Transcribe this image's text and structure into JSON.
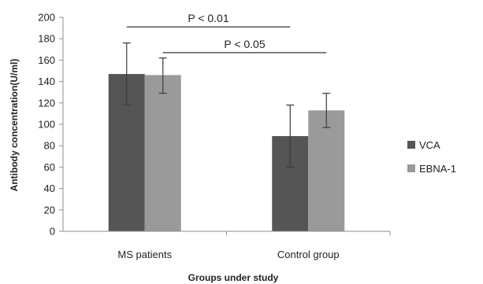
{
  "chart_data": {
    "type": "bar",
    "title": "",
    "xlabel": "Groups under study",
    "ylabel": "Antibody concentration(U/ml)",
    "ylim": [
      0,
      200
    ],
    "yticks": [
      "0",
      "20",
      "40",
      "60",
      "80",
      "100",
      "120",
      "140",
      "160",
      "180",
      "200"
    ],
    "categories": [
      "MS patients",
      "Control group"
    ],
    "series": [
      {
        "name": "VCA",
        "color": "#555555",
        "values": [
          147,
          89
        ],
        "error_low": [
          118,
          60
        ],
        "error_high": [
          176,
          118
        ]
      },
      {
        "name": "EBNA-1",
        "color": "#9a9a9a",
        "values": [
          146,
          113
        ],
        "error_low": [
          129,
          97
        ],
        "error_high": [
          162,
          129
        ]
      }
    ],
    "annotations": [
      {
        "text": "P < 0.01",
        "y": 191,
        "from": [
          "MS patients",
          "VCA"
        ],
        "to": [
          "Control group",
          "VCA"
        ]
      },
      {
        "text": "P < 0.05",
        "y": 167,
        "from": [
          "MS patients",
          "EBNA-1"
        ],
        "to": [
          "Control group",
          "EBNA-1"
        ]
      }
    ],
    "grid": false,
    "legend_position": "right"
  }
}
